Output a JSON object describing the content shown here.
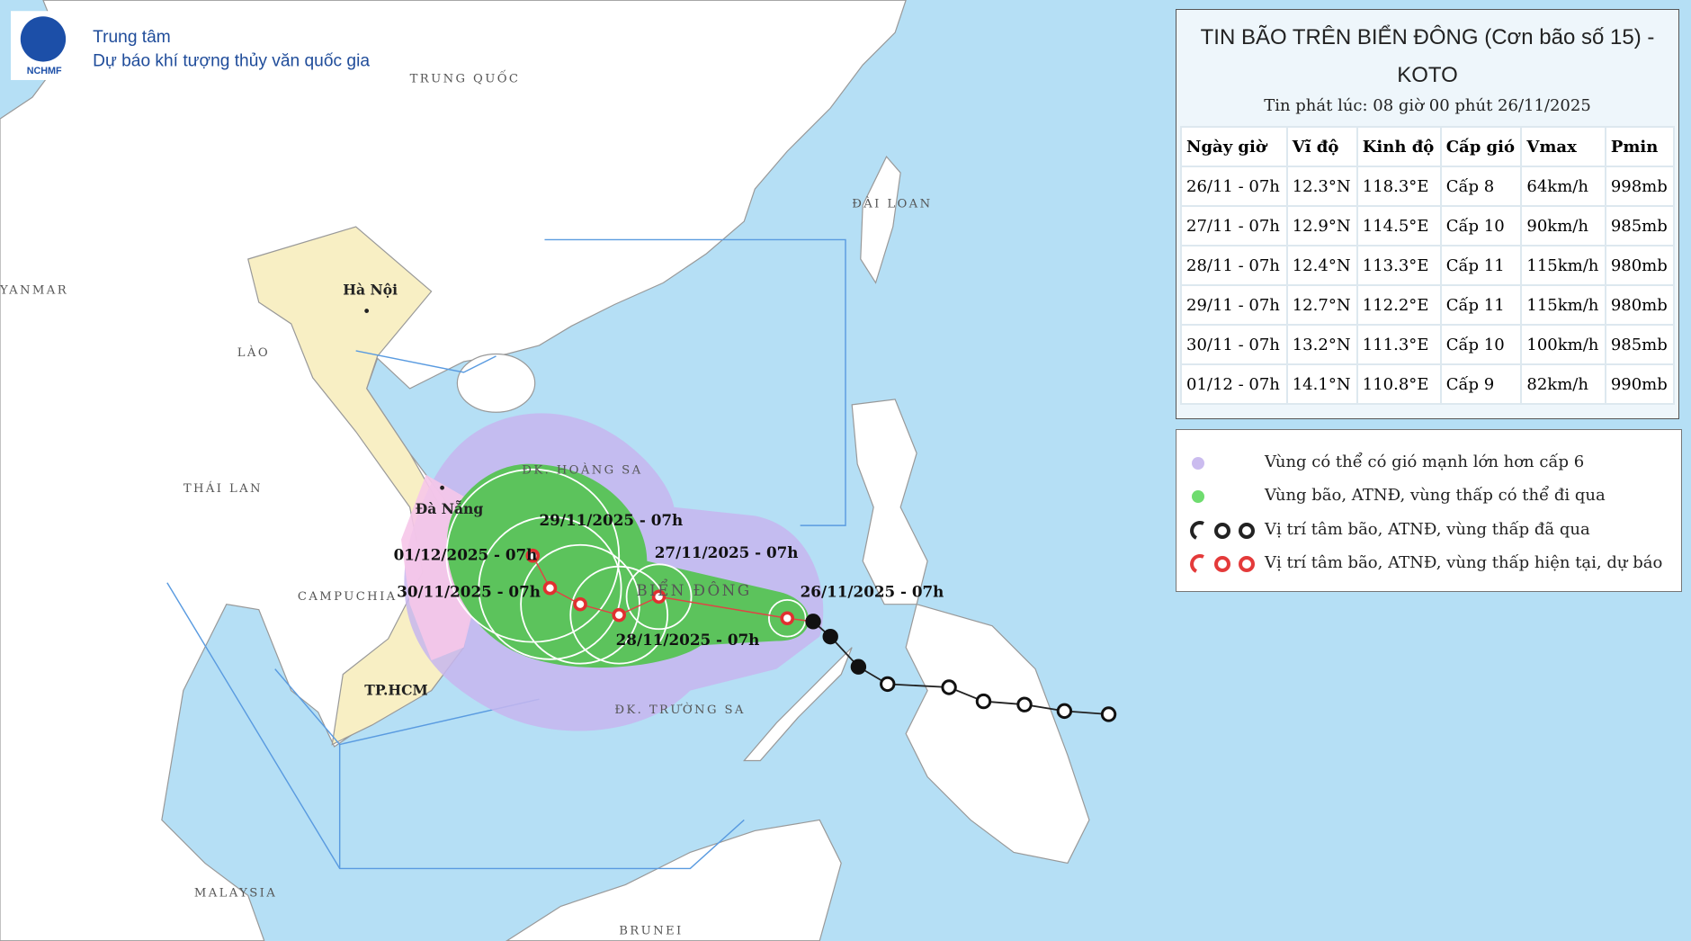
{
  "header": {
    "logo": "NCHMF",
    "line1": "Trung tâm",
    "line2": "Dự báo khí tượng thủy văn quốc gia"
  },
  "map": {
    "places": [
      "TRUNG QUỐC",
      "ĐÀI LOAN",
      "YANMAR",
      "Hà Nội",
      "LÀO",
      "THÁI LAN",
      "Đà Nẵng",
      "CAMPUCHIA",
      "TP.HCM",
      "ĐK. HOÀNG SA",
      "BIỂN ĐÔNG",
      "ĐK. TRƯỜNG SA",
      "MALAYSIA",
      "BRUNEI"
    ],
    "forecast_labels": [
      "29/11/2025 - 07h",
      "27/11/2025 - 07h",
      "01/12/2025 - 07h",
      "30/11/2025 - 07h",
      "26/11/2025 - 07h",
      "28/11/2025 - 07h"
    ]
  },
  "bulletin": {
    "title": "TIN BÃO TRÊN BIỂN ĐÔNG (Cơn bão số 15) - KOTO",
    "issued": "Tin phát lúc: 08 giờ 00 phút 26/11/2025",
    "table": {
      "columns": [
        "Ngày giờ",
        "Vĩ độ",
        "Kinh độ",
        "Cấp gió",
        "Vmax",
        "Pmin"
      ],
      "rows": [
        [
          "26/11 - 07h",
          "12.3°N",
          "118.3°E",
          "Cấp 8",
          "64km/h",
          "998mb"
        ],
        [
          "27/11 - 07h",
          "12.9°N",
          "114.5°E",
          "Cấp 10",
          "90km/h",
          "985mb"
        ],
        [
          "28/11 - 07h",
          "12.4°N",
          "113.3°E",
          "Cấp 11",
          "115km/h",
          "980mb"
        ],
        [
          "29/11 - 07h",
          "12.7°N",
          "112.2°E",
          "Cấp 11",
          "115km/h",
          "980mb"
        ],
        [
          "30/11 - 07h",
          "13.2°N",
          "111.3°E",
          "Cấp 10",
          "100km/h",
          "985mb"
        ],
        [
          "01/12 - 07h",
          "14.1°N",
          "110.8°E",
          "Cấp 9",
          "82km/h",
          "990mb"
        ]
      ]
    }
  },
  "legend": [
    "Vùng có thể có gió mạnh lớn hơn cấp 6",
    "Vùng bão, ATNĐ, vùng thấp có thể đi qua",
    "Vị trí tâm bão, ATNĐ, vùng thấp đã qua",
    "Vị trí tâm bão, ATNĐ, vùng thấp hiện tại, dự báo"
  ]
}
